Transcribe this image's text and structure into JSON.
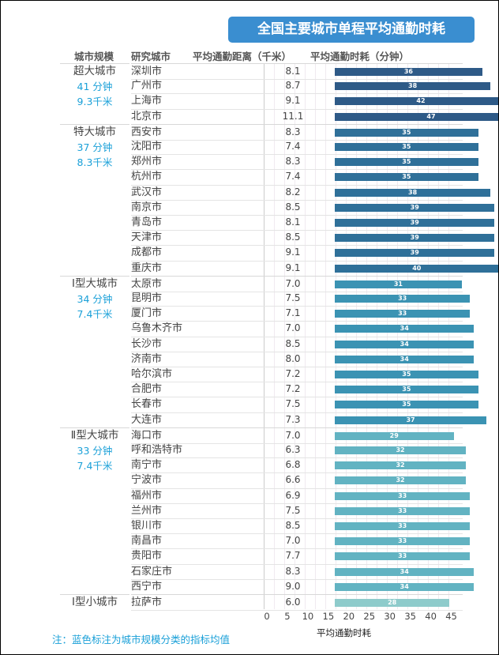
{
  "chart_data": {
    "type": "bar",
    "title": "全国主要城市单程平均通勤时耗",
    "columns": [
      "城市规模",
      "研究城市",
      "平均通勤距离（千米）",
      "平均通勤时耗（分钟）"
    ],
    "xlabel": "平均通勤时耗",
    "xlim": [
      0,
      47
    ],
    "xticks": [
      "0",
      "5",
      "10",
      "15",
      "20",
      "25",
      "30",
      "35",
      "40",
      "45"
    ],
    "groups": [
      {
        "name": "超大城市",
        "avg_time": "41 分钟",
        "avg_dist": "9.3千米",
        "color": "#2e5a87",
        "cities": [
          [
            "深圳市",
            "8.1",
            36
          ],
          [
            "广州市",
            "8.7",
            38
          ],
          [
            "上海市",
            "9.1",
            42
          ],
          [
            "北京市",
            "11.1",
            47
          ]
        ]
      },
      {
        "name": "特大城市",
        "avg_time": "37 分钟",
        "avg_dist": "8.3千米",
        "color": "#2f7099",
        "cities": [
          [
            "西安市",
            "8.3",
            35
          ],
          [
            "沈阳市",
            "7.4",
            35
          ],
          [
            "郑州市",
            "8.3",
            35
          ],
          [
            "杭州市",
            "7.4",
            35
          ],
          [
            "武汉市",
            "8.2",
            38
          ],
          [
            "南京市",
            "8.5",
            39
          ],
          [
            "青岛市",
            "8.1",
            39
          ],
          [
            "天津市",
            "8.5",
            39
          ],
          [
            "成都市",
            "9.1",
            39
          ],
          [
            "重庆市",
            "9.1",
            40
          ]
        ]
      },
      {
        "name": "Ⅰ型大城市",
        "avg_time": "34 分钟",
        "avg_dist": "7.4千米",
        "color": "#3b93b3",
        "cities": [
          [
            "太原市",
            "7.0",
            31
          ],
          [
            "昆明市",
            "7.5",
            33
          ],
          [
            "厦门市",
            "7.1",
            33
          ],
          [
            "乌鲁木齐市",
            "7.0",
            34
          ],
          [
            "长沙市",
            "8.5",
            34
          ],
          [
            "济南市",
            "8.0",
            34
          ],
          [
            "哈尔滨市",
            "7.2",
            35
          ],
          [
            "合肥市",
            "7.2",
            35
          ],
          [
            "长春市",
            "7.5",
            35
          ],
          [
            "大连市",
            "7.3",
            37
          ]
        ]
      },
      {
        "name": "Ⅱ型大城市",
        "avg_time": "33 分钟",
        "avg_dist": "7.4千米",
        "color": "#62b3c2",
        "cities": [
          [
            "海口市",
            "7.0",
            29
          ],
          [
            "呼和浩特市",
            "6.3",
            32
          ],
          [
            "南宁市",
            "6.8",
            32
          ],
          [
            "宁波市",
            "6.6",
            32
          ],
          [
            "福州市",
            "6.9",
            33
          ],
          [
            "兰州市",
            "7.5",
            33
          ],
          [
            "银川市",
            "8.5",
            33
          ],
          [
            "南昌市",
            "7.0",
            33
          ],
          [
            "贵阳市",
            "7.7",
            33
          ],
          [
            "石家庄市",
            "8.3",
            34
          ],
          [
            "西宁市",
            "9.0",
            34
          ]
        ]
      },
      {
        "name": "Ⅰ型小城市",
        "color": "#8ecbcb",
        "cities": [
          [
            "拉萨市",
            "6.0",
            28
          ]
        ]
      }
    ],
    "note": "注：蓝色标注为城市规模分类的指标均值"
  }
}
